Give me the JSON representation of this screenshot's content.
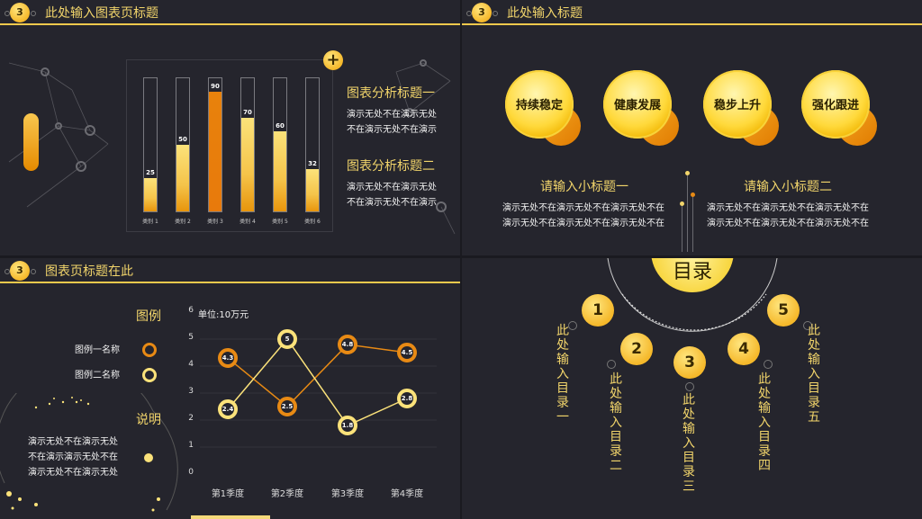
{
  "panel1": {
    "badge": "3",
    "title": "此处输入图表页标题",
    "plus": "+",
    "heading1": "图表分析标题一",
    "body1a": "演示无处不在演示无处",
    "body1b": "不在演示无处不在演示",
    "heading2": "图表分析标题二",
    "body2a": "演示无处不在演示无处",
    "body2b": "不在演示无处不在演示"
  },
  "bar_chart": {
    "type": "bar",
    "categories": [
      "类别 1",
      "类别 2",
      "类别 3",
      "类别 4",
      "类别 5",
      "类别 6"
    ],
    "values": [
      25,
      50,
      90,
      70,
      60,
      32
    ],
    "ylim": [
      0,
      100
    ],
    "highlight_index": 2,
    "colors": {
      "fill": "#f5c44a",
      "highlight": "#e8820c"
    }
  },
  "panel2": {
    "badge": "3",
    "title": "此处输入标题",
    "balls": [
      "持续稳定",
      "健康发展",
      "稳步上升",
      "强化跟进"
    ],
    "sub1": "请输入小标题一",
    "sub1_a": "演示无处不在演示无处不在演示无处不在",
    "sub1_b": "演示无处不在演示无处不在演示无处不在",
    "sub2": "请输入小标题二",
    "sub2_a": "演示无处不在演示无处不在演示无处不在",
    "sub2_b": "演示无处不在演示无处不在演示无处不在"
  },
  "panel3": {
    "badge": "3",
    "title": "图表页标题在此",
    "legend_title": "图例",
    "legend1": "图例一名称",
    "legend2": "图例二名称",
    "note_title": "说明",
    "note_a": "演示无处不在演示无处",
    "note_b": "不在演示演示无处不在",
    "note_c": "演示无处不在演示无处",
    "unit": "单位:10万元"
  },
  "line_chart": {
    "type": "line",
    "categories": [
      "第1季度",
      "第2季度",
      "第3季度",
      "第4季度"
    ],
    "y_ticks": [
      "0",
      "1",
      "2",
      "3",
      "4",
      "5",
      "6"
    ],
    "ylim": [
      0,
      6
    ],
    "series": [
      {
        "name": "图例一名称",
        "values": [
          4.3,
          2.5,
          4.8,
          4.5
        ],
        "color": "#e88a14"
      },
      {
        "name": "图例二名称",
        "values": [
          2.4,
          5,
          1.8,
          2.8
        ],
        "color": "#fbe27a"
      }
    ]
  },
  "panel4": {
    "title": "目录",
    "items": [
      {
        "num": "1",
        "label": "此处输入目录一"
      },
      {
        "num": "2",
        "label": "此处输入目录二"
      },
      {
        "num": "3",
        "label": "此处输入目录三"
      },
      {
        "num": "4",
        "label": "此处输入目录四"
      },
      {
        "num": "5",
        "label": "此处输入目录五"
      }
    ]
  }
}
